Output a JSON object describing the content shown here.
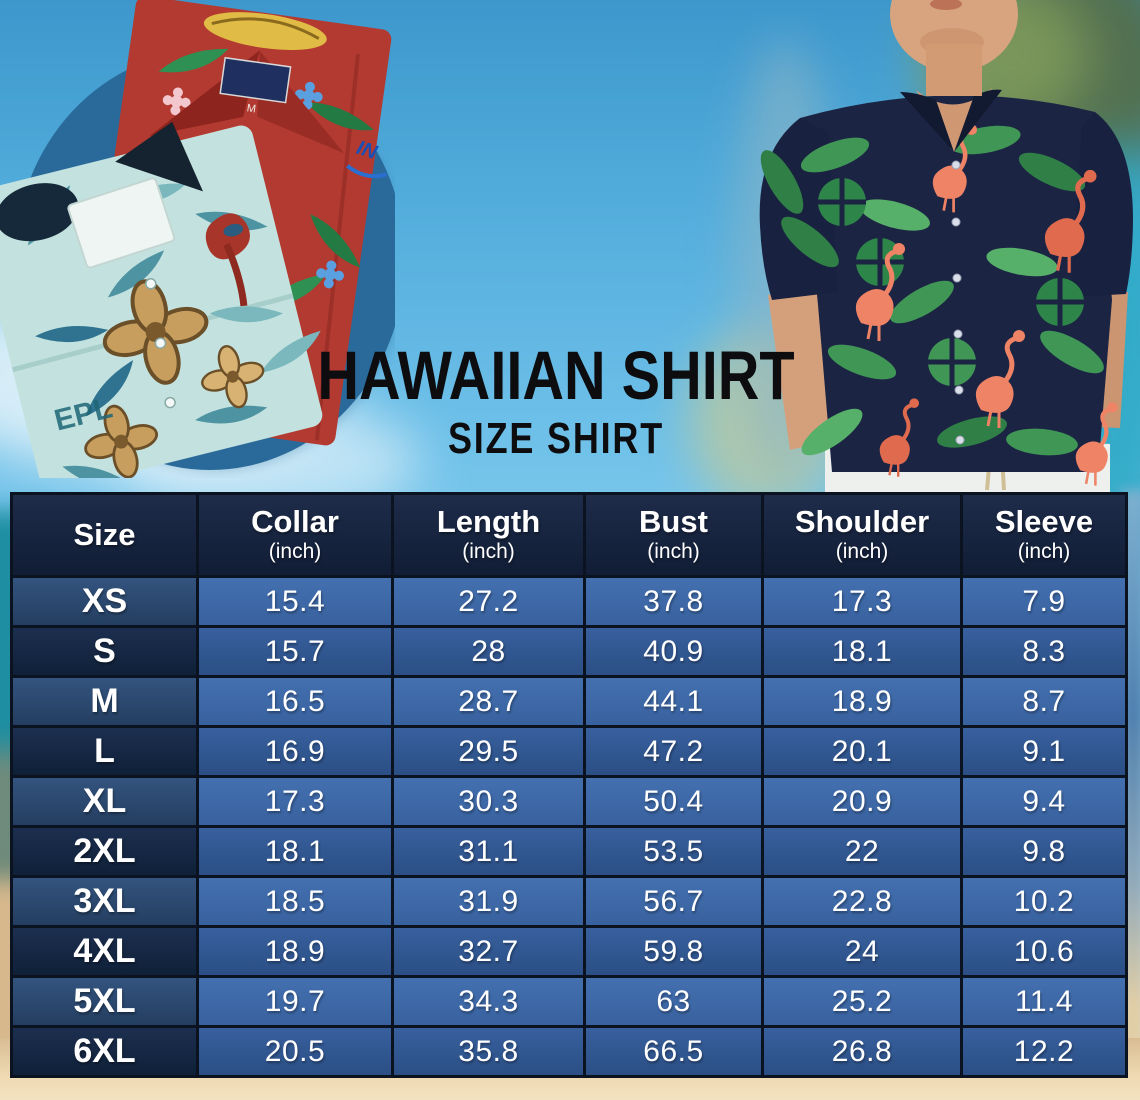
{
  "title": {
    "line1": "HAWAIIAN SHIRT",
    "line2": "SIZE SHIRT"
  },
  "chart_data": {
    "type": "table",
    "title": "Hawaiian Shirt Size Shirt",
    "columns": [
      {
        "label": "Size",
        "unit": ""
      },
      {
        "label": "Collar",
        "unit": "(inch)"
      },
      {
        "label": "Length",
        "unit": "(inch)"
      },
      {
        "label": "Bust",
        "unit": "(inch)"
      },
      {
        "label": "Shoulder",
        "unit": "(inch)"
      },
      {
        "label": "Sleeve",
        "unit": "(inch)"
      }
    ],
    "rows": [
      {
        "size": "XS",
        "values": [
          "15.4",
          "27.2",
          "37.8",
          "17.3",
          "7.9"
        ]
      },
      {
        "size": "S",
        "values": [
          "15.7",
          "28",
          "40.9",
          "18.1",
          "8.3"
        ]
      },
      {
        "size": "M",
        "values": [
          "16.5",
          "28.7",
          "44.1",
          "18.9",
          "8.7"
        ]
      },
      {
        "size": "L",
        "values": [
          "16.9",
          "29.5",
          "47.2",
          "20.1",
          "9.1"
        ]
      },
      {
        "size": "XL",
        "values": [
          "17.3",
          "30.3",
          "50.4",
          "20.9",
          "9.4"
        ]
      },
      {
        "size": "2XL",
        "values": [
          "18.1",
          "31.1",
          "53.5",
          "22",
          "9.8"
        ]
      },
      {
        "size": "3XL",
        "values": [
          "18.5",
          "31.9",
          "56.7",
          "22.8",
          "10.2"
        ]
      },
      {
        "size": "4XL",
        "values": [
          "18.9",
          "32.7",
          "59.8",
          "24",
          "10.6"
        ]
      },
      {
        "size": "5XL",
        "values": [
          "19.7",
          "34.3",
          "63",
          "25.2",
          "11.4"
        ]
      },
      {
        "size": "6XL",
        "values": [
          "20.5",
          "35.8",
          "66.5",
          "26.8",
          "12.2"
        ]
      }
    ]
  },
  "photos": {
    "red_shirt_label_size": "M",
    "red_shirt_sleeve_print": "IN",
    "teal_shirt_print": "EPL"
  },
  "colors": {
    "header_bg": "#16233d",
    "row_value_light": "#3e6cac",
    "row_value_dark": "#30598f",
    "size_col_light": "#2b4970",
    "size_col_dark": "#15253f",
    "grid_border": "#0b1220",
    "table_text": "#ffffff",
    "title_text": "#0d0d10",
    "sky": "#6cbfe8",
    "sand": "#eed9b2",
    "shirt_red": "#b23a31",
    "shirt_teal": "#c3e2df",
    "shirt_navy": "#1c2444",
    "flamingo": "#ee8365",
    "leaf_green": "#3f9655"
  }
}
